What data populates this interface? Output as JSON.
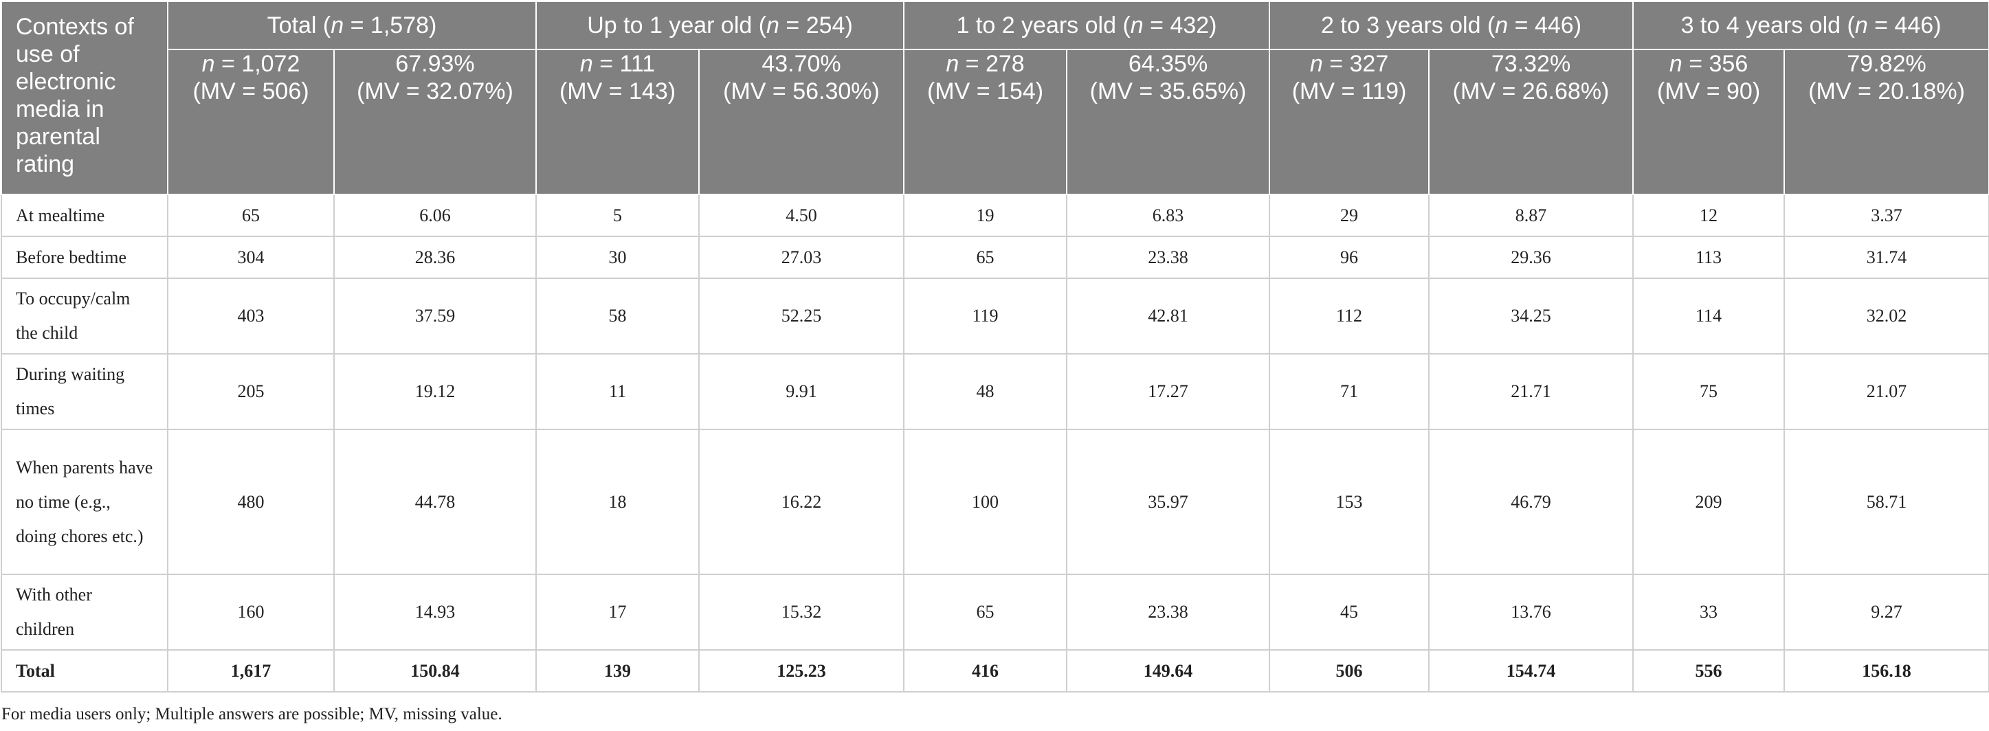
{
  "table": {
    "corner_label": "Contexts of use of electronic media in parental rating",
    "groups": [
      {
        "prefix": "Total (",
        "n": "n",
        "suffix": " = 1,578)"
      },
      {
        "prefix": "Up to 1 year old (",
        "n": "n",
        "suffix": " = 254)"
      },
      {
        "prefix": "1 to 2 years old (",
        "n": "n",
        "suffix": " = 432)"
      },
      {
        "prefix": "2 to 3 years old (",
        "n": "n",
        "suffix": " = 446)"
      },
      {
        "prefix": "3 to 4 years old (",
        "n": "n",
        "suffix": " = 446)"
      }
    ],
    "subheaders": [
      {
        "line1_n": "n",
        "line1_rest": " = 1,072",
        "line2": "(MV = 506)"
      },
      {
        "line1_n": "",
        "line1_rest": "67.93%",
        "line2": "(MV = 32.07%)"
      },
      {
        "line1_n": "n",
        "line1_rest": " = 111",
        "line2": "(MV = 143)"
      },
      {
        "line1_n": "",
        "line1_rest": "43.70%",
        "line2": "(MV = 56.30%)"
      },
      {
        "line1_n": "n",
        "line1_rest": " = 278",
        "line2": "(MV = 154)"
      },
      {
        "line1_n": "",
        "line1_rest": "64.35%",
        "line2": "(MV = 35.65%)"
      },
      {
        "line1_n": "n",
        "line1_rest": " = 327",
        "line2": "(MV = 119)"
      },
      {
        "line1_n": "",
        "line1_rest": "73.32%",
        "line2": "(MV = 26.68%)"
      },
      {
        "line1_n": "n",
        "line1_rest": " = 356",
        "line2": "(MV = 90)"
      },
      {
        "line1_n": "",
        "line1_rest": "79.82%",
        "line2": "(MV = 20.18%)"
      }
    ],
    "rows": [
      {
        "label": "At mealtime",
        "values": [
          "65",
          "6.06",
          "5",
          "4.50",
          "19",
          "6.83",
          "29",
          "8.87",
          "12",
          "3.37"
        ]
      },
      {
        "label": "Before bedtime",
        "values": [
          "304",
          "28.36",
          "30",
          "27.03",
          "65",
          "23.38",
          "96",
          "29.36",
          "113",
          "31.74"
        ]
      },
      {
        "label": "To occupy/calm the child",
        "values": [
          "403",
          "37.59",
          "58",
          "52.25",
          "119",
          "42.81",
          "112",
          "34.25",
          "114",
          "32.02"
        ]
      },
      {
        "label": "During waiting times",
        "values": [
          "205",
          "19.12",
          "11",
          "9.91",
          "48",
          "17.27",
          "71",
          "21.71",
          "75",
          "21.07"
        ]
      },
      {
        "label": "When parents have no time (e.g., doing chores etc.)",
        "values": [
          "480",
          "44.78",
          "18",
          "16.22",
          "100",
          "35.97",
          "153",
          "46.79",
          "209",
          "58.71"
        ]
      },
      {
        "label": "With other children",
        "values": [
          "160",
          "14.93",
          "17",
          "15.32",
          "65",
          "23.38",
          "45",
          "13.76",
          "33",
          "9.27"
        ]
      },
      {
        "label": "Total",
        "values": [
          "1,617",
          "150.84",
          "139",
          "125.23",
          "416",
          "149.64",
          "506",
          "154.74",
          "556",
          "156.18"
        ]
      }
    ]
  },
  "footnote": "For media users only; Multiple answers are possible; MV, missing value."
}
